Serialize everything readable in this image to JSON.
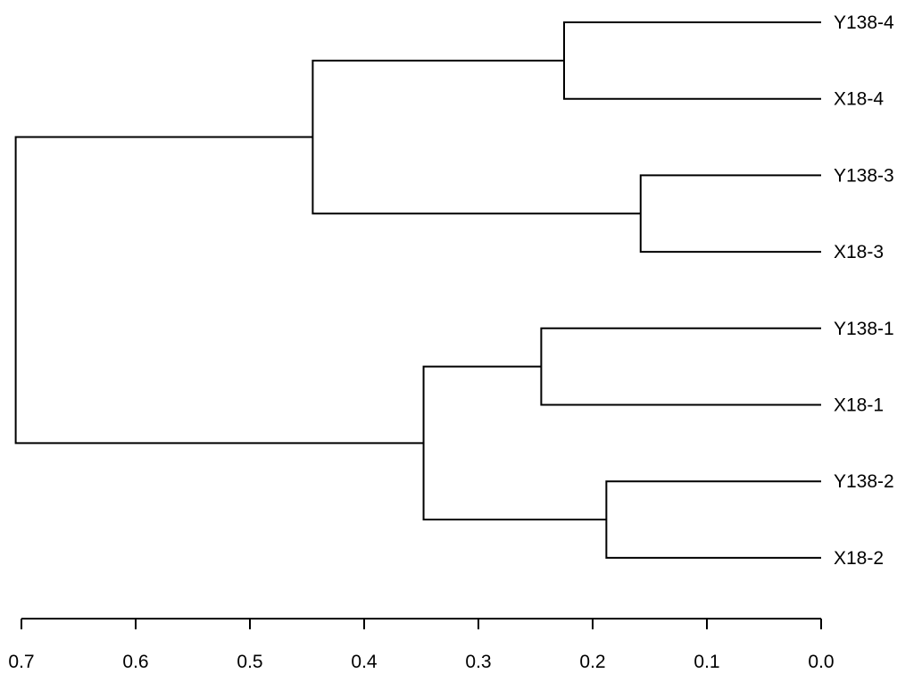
{
  "chart_data": {
    "type": "dendrogram",
    "orientation": "horizontal",
    "title": "",
    "xlabel": "",
    "ylabel": "",
    "xlim": [
      0.7,
      0.0
    ],
    "x_ticks": [
      0.7,
      0.6,
      0.5,
      0.4,
      0.3,
      0.2,
      0.1,
      0.0
    ],
    "x_tick_labels": [
      "0.7",
      "0.6",
      "0.5",
      "0.4",
      "0.3",
      "0.2",
      "0.1",
      "0.0"
    ],
    "leaves": [
      "Y138-4",
      "X18-4",
      "Y138-3",
      "X18-3",
      "Y138-1",
      "X18-1",
      "Y138-2",
      "X18-2"
    ],
    "merges": [
      {
        "id": "A",
        "children": [
          "Y138-4",
          "X18-4"
        ],
        "height": 0.225
      },
      {
        "id": "B",
        "children": [
          "Y138-3",
          "X18-3"
        ],
        "height": 0.158
      },
      {
        "id": "C",
        "children": [
          "A",
          "B"
        ],
        "height": 0.445
      },
      {
        "id": "D",
        "children": [
          "Y138-1",
          "X18-1"
        ],
        "height": 0.245
      },
      {
        "id": "E",
        "children": [
          "Y138-2",
          "X18-2"
        ],
        "height": 0.188
      },
      {
        "id": "F",
        "children": [
          "D",
          "E"
        ],
        "height": 0.348
      },
      {
        "id": "G",
        "children": [
          "C",
          "F"
        ],
        "height": 0.705
      }
    ],
    "colors": {
      "line": "#000000",
      "background": "#ffffff"
    }
  }
}
